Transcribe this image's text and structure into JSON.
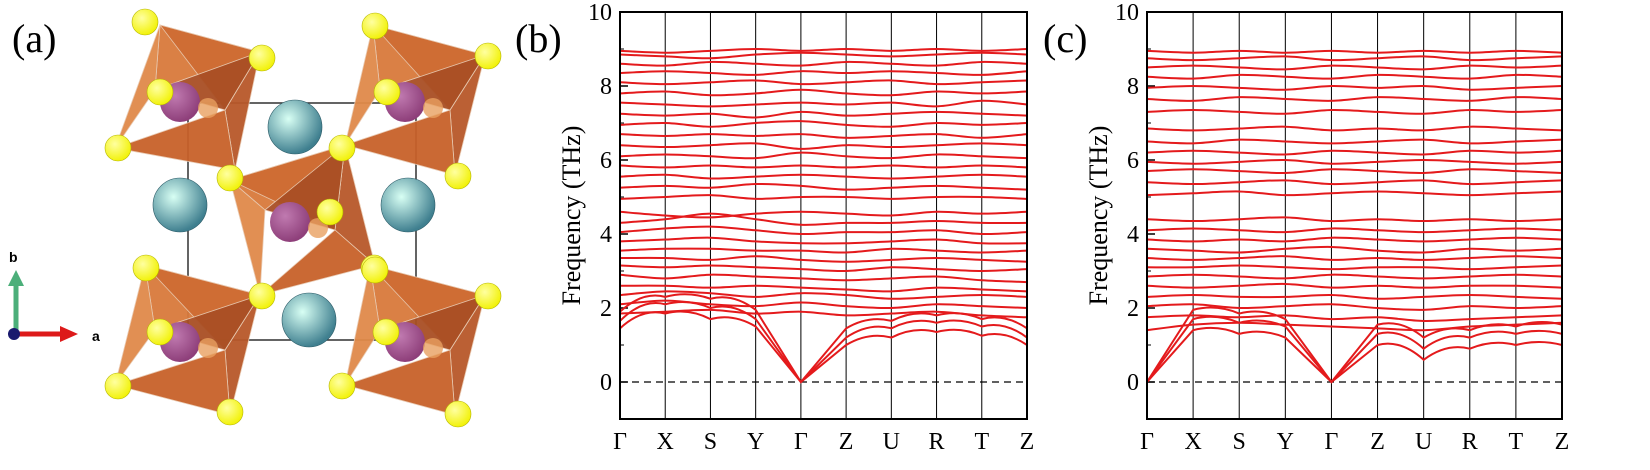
{
  "panels": {
    "a": {
      "label": "(a)",
      "axis_b": "b",
      "axis_a": "a"
    },
    "b": {
      "label": "(b)"
    },
    "c": {
      "label": "(c)"
    }
  },
  "colors": {
    "band": "#e41a1c",
    "octahedron": "#c8612a",
    "anion": "#f2f20a",
    "cation_a": "#3f7f8f",
    "cation_b": "#8e3f7a",
    "axis_b_arrow": "#4caf7a",
    "axis_a_arrow": "#dd1a1a"
  },
  "chart_data": [
    {
      "type": "line",
      "panel": "b",
      "ylabel": "Frequency (THz)",
      "ylim": [
        -1,
        10
      ],
      "yticks": [
        "0",
        "2",
        "4",
        "6",
        "8",
        "10"
      ],
      "kpath": [
        "Γ",
        "X",
        "S",
        "Y",
        "Γ",
        "Z",
        "U",
        "R",
        "T",
        "Z"
      ],
      "zero_line": "dashed",
      "acoustic": [
        {
          "name": "",
          "values": [
            [
              0,
              1.45
            ],
            [
              1,
              1.85
            ],
            [
              2,
              1.7
            ],
            [
              3,
              1.5
            ],
            [
              4,
              0
            ],
            [
              5,
              1.0
            ],
            [
              6,
              1.2
            ],
            [
              7,
              1.35
            ],
            [
              8,
              1.25
            ],
            [
              9,
              1.0
            ]
          ]
        },
        {
          "name": "",
          "values": [
            [
              0,
              1.65
            ],
            [
              1,
              2.1
            ],
            [
              2,
              2.0
            ],
            [
              3,
              1.7
            ],
            [
              4,
              0
            ],
            [
              5,
              1.2
            ],
            [
              6,
              1.45
            ],
            [
              7,
              1.6
            ],
            [
              8,
              1.5
            ],
            [
              9,
              1.2
            ]
          ]
        },
        {
          "name": "",
          "values": [
            [
              0,
              1.9
            ],
            [
              1,
              2.3
            ],
            [
              2,
              2.25
            ],
            [
              3,
              1.95
            ],
            [
              4,
              0
            ],
            [
              5,
              1.45
            ],
            [
              6,
              1.65
            ],
            [
              7,
              1.8
            ],
            [
              8,
              1.7
            ],
            [
              9,
              1.45
            ]
          ]
        }
      ],
      "optical": [
        [
          1.85,
          1.9,
          1.95,
          1.85,
          1.9,
          1.8,
          1.85,
          1.9,
          1.8,
          1.75
        ],
        [
          2.1,
          2.2,
          2.1,
          2.05,
          2.15,
          2.05,
          2.0,
          2.1,
          2.05,
          2.0
        ],
        [
          2.35,
          2.45,
          2.4,
          2.3,
          2.4,
          2.35,
          2.25,
          2.3,
          2.35,
          2.3
        ],
        [
          2.6,
          2.6,
          2.55,
          2.6,
          2.55,
          2.5,
          2.45,
          2.55,
          2.5,
          2.45
        ],
        [
          2.9,
          2.8,
          2.9,
          2.85,
          2.8,
          2.75,
          2.8,
          2.85,
          2.75,
          2.7
        ],
        [
          3.15,
          3.1,
          3.15,
          3.1,
          3.05,
          3.0,
          3.1,
          3.05,
          3.0,
          3.05
        ],
        [
          3.35,
          3.35,
          3.3,
          3.4,
          3.3,
          3.25,
          3.3,
          3.35,
          3.3,
          3.25
        ],
        [
          3.55,
          3.6,
          3.6,
          3.55,
          3.55,
          3.5,
          3.6,
          3.55,
          3.5,
          3.55
        ],
        [
          3.8,
          3.85,
          3.9,
          3.8,
          3.75,
          3.75,
          3.8,
          3.85,
          3.75,
          3.75
        ],
        [
          4.05,
          4.15,
          4.2,
          4.1,
          4.0,
          4.05,
          4.05,
          4.1,
          4.0,
          4.05
        ],
        [
          4.3,
          4.4,
          4.55,
          4.4,
          4.25,
          4.3,
          4.3,
          4.35,
          4.3,
          4.3
        ],
        [
          4.6,
          4.5,
          4.45,
          4.55,
          4.6,
          4.55,
          4.5,
          4.6,
          4.55,
          4.6
        ],
        [
          4.95,
          5.0,
          5.05,
          4.95,
          5.0,
          5.0,
          4.95,
          5.0,
          5.0,
          4.95
        ],
        [
          5.25,
          5.3,
          5.25,
          5.35,
          5.3,
          5.2,
          5.25,
          5.3,
          5.25,
          5.2
        ],
        [
          5.55,
          5.6,
          5.5,
          5.55,
          5.6,
          5.55,
          5.5,
          5.55,
          5.6,
          5.55
        ],
        [
          5.85,
          5.8,
          5.85,
          5.8,
          5.85,
          5.8,
          5.85,
          5.8,
          5.85,
          5.8
        ],
        [
          6.1,
          6.15,
          6.1,
          6.05,
          6.2,
          6.1,
          6.05,
          6.15,
          6.1,
          6.05
        ],
        [
          6.4,
          6.35,
          6.4,
          6.45,
          6.3,
          6.4,
          6.35,
          6.4,
          6.45,
          6.4
        ],
        [
          6.7,
          6.65,
          6.7,
          6.65,
          6.7,
          6.6,
          6.65,
          6.7,
          6.6,
          6.7
        ],
        [
          6.95,
          7.0,
          6.9,
          7.0,
          7.05,
          6.95,
          6.9,
          7.0,
          6.95,
          7.0
        ],
        [
          7.25,
          7.2,
          7.25,
          7.15,
          7.3,
          7.2,
          7.25,
          7.3,
          7.25,
          7.2
        ],
        [
          7.55,
          7.5,
          7.45,
          7.5,
          7.55,
          7.5,
          7.55,
          7.45,
          7.6,
          7.5
        ],
        [
          7.8,
          7.85,
          7.75,
          7.8,
          7.9,
          7.8,
          7.75,
          7.85,
          7.8,
          7.85
        ],
        [
          8.1,
          8.05,
          8.1,
          8.15,
          8.05,
          8.1,
          8.15,
          8.05,
          8.1,
          8.15
        ],
        [
          8.35,
          8.4,
          8.35,
          8.3,
          8.4,
          8.35,
          8.4,
          8.35,
          8.3,
          8.4
        ],
        [
          8.6,
          8.55,
          8.65,
          8.6,
          8.55,
          8.65,
          8.6,
          8.55,
          8.65,
          8.6
        ],
        [
          8.85,
          8.8,
          8.75,
          8.85,
          8.9,
          8.85,
          8.8,
          8.85,
          8.9,
          8.85
        ],
        [
          8.95,
          8.9,
          8.95,
          9.0,
          8.95,
          9.0,
          8.95,
          9.0,
          8.95,
          9.0
        ]
      ]
    },
    {
      "type": "line",
      "panel": "c",
      "ylabel": "Frequency (THz)",
      "ylim": [
        -1,
        10
      ],
      "yticks": [
        "0",
        "2",
        "4",
        "6",
        "8",
        "10"
      ],
      "kpath": [
        "Γ",
        "X",
        "S",
        "Y",
        "Γ",
        "Z",
        "U",
        "R",
        "T",
        "Z"
      ],
      "zero_line": "dashed",
      "acoustic": [
        {
          "name": "",
          "values": [
            [
              0,
              0
            ],
            [
              1,
              1.4
            ],
            [
              2,
              1.3
            ],
            [
              3,
              1.2
            ],
            [
              4,
              0
            ],
            [
              5,
              1.0
            ],
            [
              6,
              0.6
            ],
            [
              7,
              0.9
            ],
            [
              8,
              1.0
            ],
            [
              9,
              1.0
            ]
          ]
        },
        {
          "name": "",
          "values": [
            [
              0,
              0
            ],
            [
              1,
              1.7
            ],
            [
              2,
              1.6
            ],
            [
              3,
              1.5
            ],
            [
              4,
              0
            ],
            [
              5,
              1.3
            ],
            [
              6,
              0.9
            ],
            [
              7,
              1.2
            ],
            [
              8,
              1.3
            ],
            [
              9,
              1.3
            ]
          ]
        },
        {
          "name": "",
          "values": [
            [
              0,
              0
            ],
            [
              1,
              1.95
            ],
            [
              2,
              1.85
            ],
            [
              3,
              1.7
            ],
            [
              4,
              0
            ],
            [
              5,
              1.55
            ],
            [
              6,
              1.2
            ],
            [
              7,
              1.4
            ],
            [
              8,
              1.5
            ],
            [
              9,
              1.55
            ]
          ]
        }
      ],
      "optical": [
        [
          1.4,
          1.55,
          1.6,
          1.55,
          1.5,
          1.45,
          1.4,
          1.5,
          1.55,
          1.6
        ],
        [
          1.75,
          1.8,
          1.75,
          1.8,
          1.7,
          1.75,
          1.65,
          1.7,
          1.75,
          1.8
        ],
        [
          2.05,
          2.1,
          2.0,
          2.05,
          2.1,
          2.0,
          1.95,
          2.05,
          2.0,
          2.05
        ],
        [
          2.3,
          2.35,
          2.3,
          2.3,
          2.35,
          2.25,
          2.3,
          2.35,
          2.3,
          2.25
        ],
        [
          2.6,
          2.55,
          2.6,
          2.65,
          2.55,
          2.6,
          2.55,
          2.6,
          2.6,
          2.55
        ],
        [
          2.85,
          2.9,
          2.85,
          2.8,
          2.9,
          2.85,
          2.8,
          2.85,
          2.9,
          2.85
        ],
        [
          3.1,
          3.1,
          3.15,
          3.1,
          3.05,
          3.1,
          3.1,
          3.05,
          3.1,
          3.15
        ],
        [
          3.35,
          3.3,
          3.35,
          3.4,
          3.3,
          3.35,
          3.3,
          3.35,
          3.4,
          3.35
        ],
        [
          3.6,
          3.55,
          3.5,
          3.6,
          3.65,
          3.55,
          3.5,
          3.6,
          3.55,
          3.6
        ],
        [
          3.85,
          3.8,
          3.85,
          3.8,
          3.9,
          3.85,
          3.8,
          3.85,
          3.9,
          3.85
        ],
        [
          4.1,
          4.15,
          4.1,
          4.05,
          4.15,
          4.1,
          4.05,
          4.1,
          4.15,
          4.1
        ],
        [
          4.4,
          4.35,
          4.4,
          4.45,
          4.35,
          4.4,
          4.35,
          4.4,
          4.35,
          4.4
        ],
        [
          5.05,
          5.1,
          5.15,
          5.05,
          5.1,
          5.15,
          5.1,
          5.05,
          5.1,
          5.15
        ],
        [
          5.4,
          5.35,
          5.4,
          5.45,
          5.35,
          5.4,
          5.45,
          5.35,
          5.4,
          5.45
        ],
        [
          5.7,
          5.75,
          5.7,
          5.65,
          5.75,
          5.7,
          5.65,
          5.75,
          5.7,
          5.65
        ],
        [
          5.95,
          5.9,
          5.95,
          6.0,
          5.9,
          5.95,
          6.0,
          5.95,
          5.9,
          5.95
        ],
        [
          6.2,
          6.25,
          6.2,
          6.15,
          6.25,
          6.2,
          6.15,
          6.25,
          6.2,
          6.25
        ],
        [
          6.5,
          6.45,
          6.55,
          6.5,
          6.45,
          6.5,
          6.55,
          6.45,
          6.5,
          6.55
        ],
        [
          6.85,
          6.8,
          6.85,
          6.9,
          6.8,
          6.85,
          6.8,
          6.9,
          6.85,
          6.8
        ],
        [
          7.3,
          7.35,
          7.3,
          7.25,
          7.35,
          7.3,
          7.25,
          7.35,
          7.3,
          7.35
        ],
        [
          7.65,
          7.6,
          7.7,
          7.65,
          7.6,
          7.7,
          7.65,
          7.6,
          7.7,
          7.65
        ],
        [
          7.95,
          8.0,
          7.95,
          7.9,
          8.0,
          7.95,
          8.0,
          7.9,
          7.95,
          8.0
        ],
        [
          8.25,
          8.2,
          8.3,
          8.25,
          8.2,
          8.3,
          8.25,
          8.2,
          8.3,
          8.25
        ],
        [
          8.5,
          8.55,
          8.5,
          8.45,
          8.55,
          8.5,
          8.45,
          8.55,
          8.5,
          8.55
        ],
        [
          8.75,
          8.7,
          8.75,
          8.8,
          8.7,
          8.75,
          8.8,
          8.7,
          8.75,
          8.8
        ],
        [
          8.95,
          8.9,
          8.95,
          8.9,
          8.95,
          8.9,
          8.95,
          8.9,
          8.95,
          8.9
        ]
      ]
    }
  ]
}
